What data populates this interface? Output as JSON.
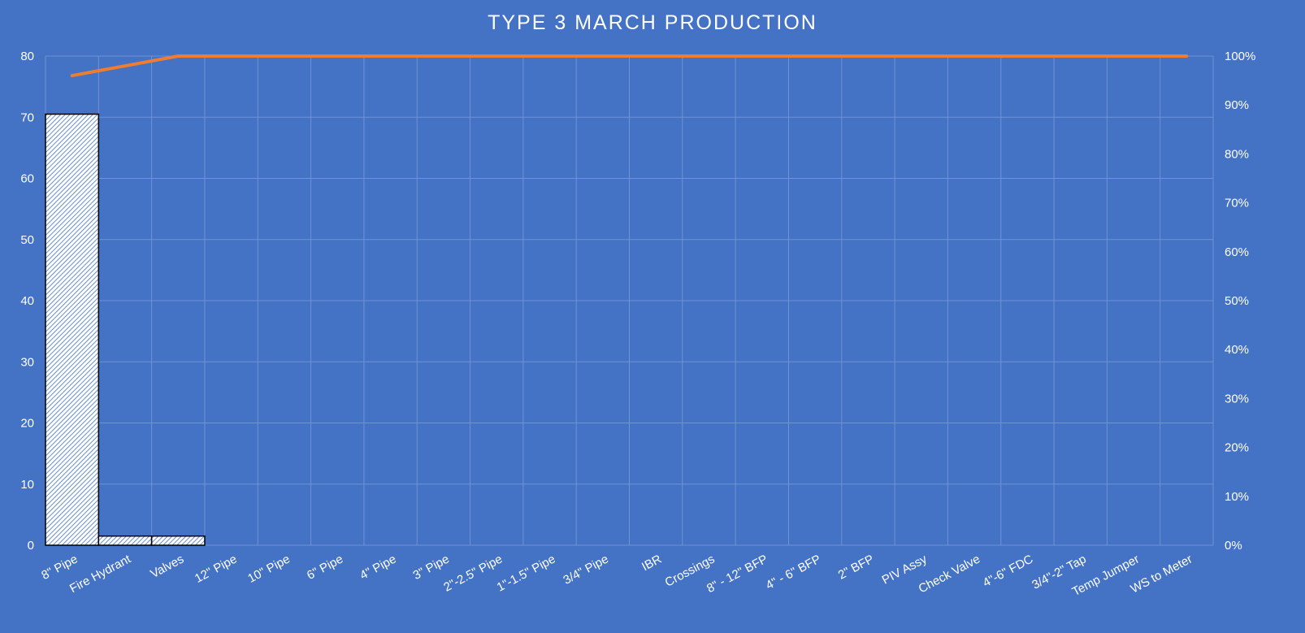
{
  "chart_data": {
    "type": "bar",
    "title": "TYPE 3 MARCH PRODUCTION",
    "categories": [
      "8\" Pipe",
      "Fire Hydrant",
      "Valves",
      "12\" Pipe",
      "10\" Pipe",
      "6\" Pipe",
      "4\" Pipe",
      "3\" Pipe",
      "2\"-2.5\" Pipe",
      "1\"-1.5\" Pipe",
      "3/4\" Pipe",
      "IBR",
      "Crossings",
      "8\" - 12\" BFP",
      "4\" - 6\" BFP",
      "2\" BFP",
      "PIV Assy",
      "Check Valve",
      "4\"-6\" FDC",
      "3/4\"-2\" Tap",
      "Temp Jumper",
      "WS to Meter"
    ],
    "series": [
      {
        "type": "bar",
        "axis": "left",
        "pattern": "diagonal-hatch",
        "values": [
          70.5,
          1.5,
          1.5,
          0,
          0,
          0,
          0,
          0,
          0,
          0,
          0,
          0,
          0,
          0,
          0,
          0,
          0,
          0,
          0,
          0,
          0,
          0
        ]
      },
      {
        "type": "line",
        "axis": "right",
        "color": "#ed7d31",
        "values": [
          0.96,
          0.98,
          1.0,
          1.0,
          1.0,
          1.0,
          1.0,
          1.0,
          1.0,
          1.0,
          1.0,
          1.0,
          1.0,
          1.0,
          1.0,
          1.0,
          1.0,
          1.0,
          1.0,
          1.0,
          1.0,
          1.0
        ]
      }
    ],
    "ylim": [
      0,
      80
    ],
    "yticks": [
      "0",
      "10",
      "20",
      "30",
      "40",
      "50",
      "60",
      "70",
      "80"
    ],
    "y2lim": [
      0,
      1
    ],
    "y2ticks": [
      "0%",
      "10%",
      "20%",
      "30%",
      "40%",
      "50%",
      "60%",
      "70%",
      "80%",
      "90%",
      "100%"
    ],
    "grid": true,
    "colors": {
      "background": "#4472c4",
      "grid": "#6f93d3",
      "bar_fill": "#ffffff",
      "bar_hatch": "#4472c4",
      "bar_edge": "#000000",
      "line": "#ed7d31",
      "text": "#ffffff"
    }
  }
}
